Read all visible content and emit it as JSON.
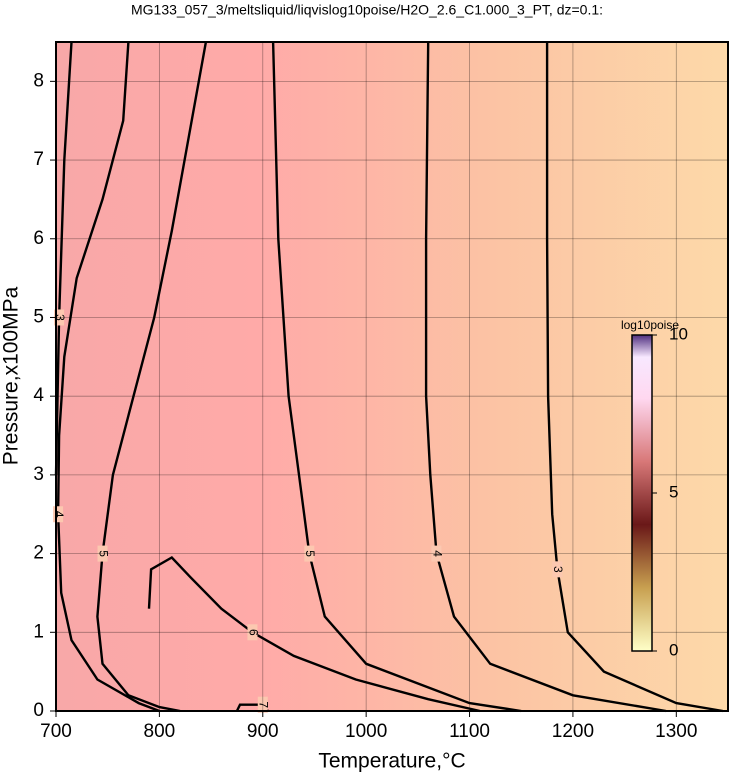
{
  "chart_data": {
    "type": "contour",
    "title": "MG133_057_3/meltsliquid/liqvislog10poise/H2O_2.6_C1.000_3_PT, dz=0.1:",
    "xlabel": "Temperature,°C",
    "ylabel": "Pressure,x100MPa",
    "xlim": [
      700,
      1350
    ],
    "xticks": [
      700,
      800,
      900,
      1000,
      1100,
      1200,
      1300
    ],
    "ylim": [
      0,
      8.5
    ],
    "yticks": [
      0,
      1,
      2,
      3,
      4,
      5,
      6,
      7,
      8
    ],
    "grid": true,
    "contours": [
      {
        "level": 3,
        "x": [
          1175,
          1175,
          1176,
          1180,
          1185,
          1195,
          1230,
          1300,
          1345
        ],
        "y": [
          8.5,
          6,
          4,
          2.5,
          1.8,
          1.0,
          0.5,
          0.1,
          0
        ]
      },
      {
        "level": 4,
        "x": [
          1060,
          1058,
          1058,
          1062,
          1068,
          1085,
          1120,
          1200,
          1290
        ],
        "y": [
          8.5,
          6,
          4,
          3,
          2,
          1.2,
          0.6,
          0.2,
          0
        ]
      },
      {
        "level": 5,
        "x": [
          910,
          915,
          925,
          935,
          945,
          960,
          1000,
          1100,
          1150
        ],
        "y": [
          8.5,
          6,
          4,
          3,
          2,
          1.2,
          0.6,
          0.1,
          0
        ]
      },
      {
        "level": 5,
        "x": [
          845,
          812,
          795,
          775,
          755,
          745,
          740,
          745,
          770,
          800,
          820
        ],
        "y": [
          8.5,
          6.1,
          5,
          4,
          3,
          2,
          1.2,
          0.6,
          0.2,
          0.05,
          0
        ]
      },
      {
        "level": 6,
        "x": [
          790,
          792,
          812,
          830,
          860,
          890,
          930,
          990,
          1060,
          1110
        ],
        "y": [
          1.3,
          1.8,
          1.95,
          1.7,
          1.3,
          1.0,
          0.7,
          0.4,
          0.15,
          0
        ]
      },
      {
        "level": 7,
        "x": [
          875,
          878,
          900,
          905
        ],
        "y": [
          0,
          0.08,
          0.08,
          0
        ]
      },
      {
        "level": 4,
        "x": [
          770,
          765,
          745,
          720,
          708,
          703,
          702,
          705,
          715,
          740,
          780,
          800
        ],
        "y": [
          8.5,
          7.5,
          6.5,
          5.5,
          4.5,
          3.5,
          2.5,
          1.5,
          0.9,
          0.4,
          0.1,
          0
        ]
      },
      {
        "level": 3,
        "x": [
          715,
          708,
          703,
          700
        ],
        "y": [
          8.5,
          7,
          5,
          3
        ]
      }
    ],
    "colorbar": {
      "label": "log10poise",
      "lim": [
        0,
        10
      ],
      "ticks": [
        0,
        5,
        10
      ]
    }
  }
}
